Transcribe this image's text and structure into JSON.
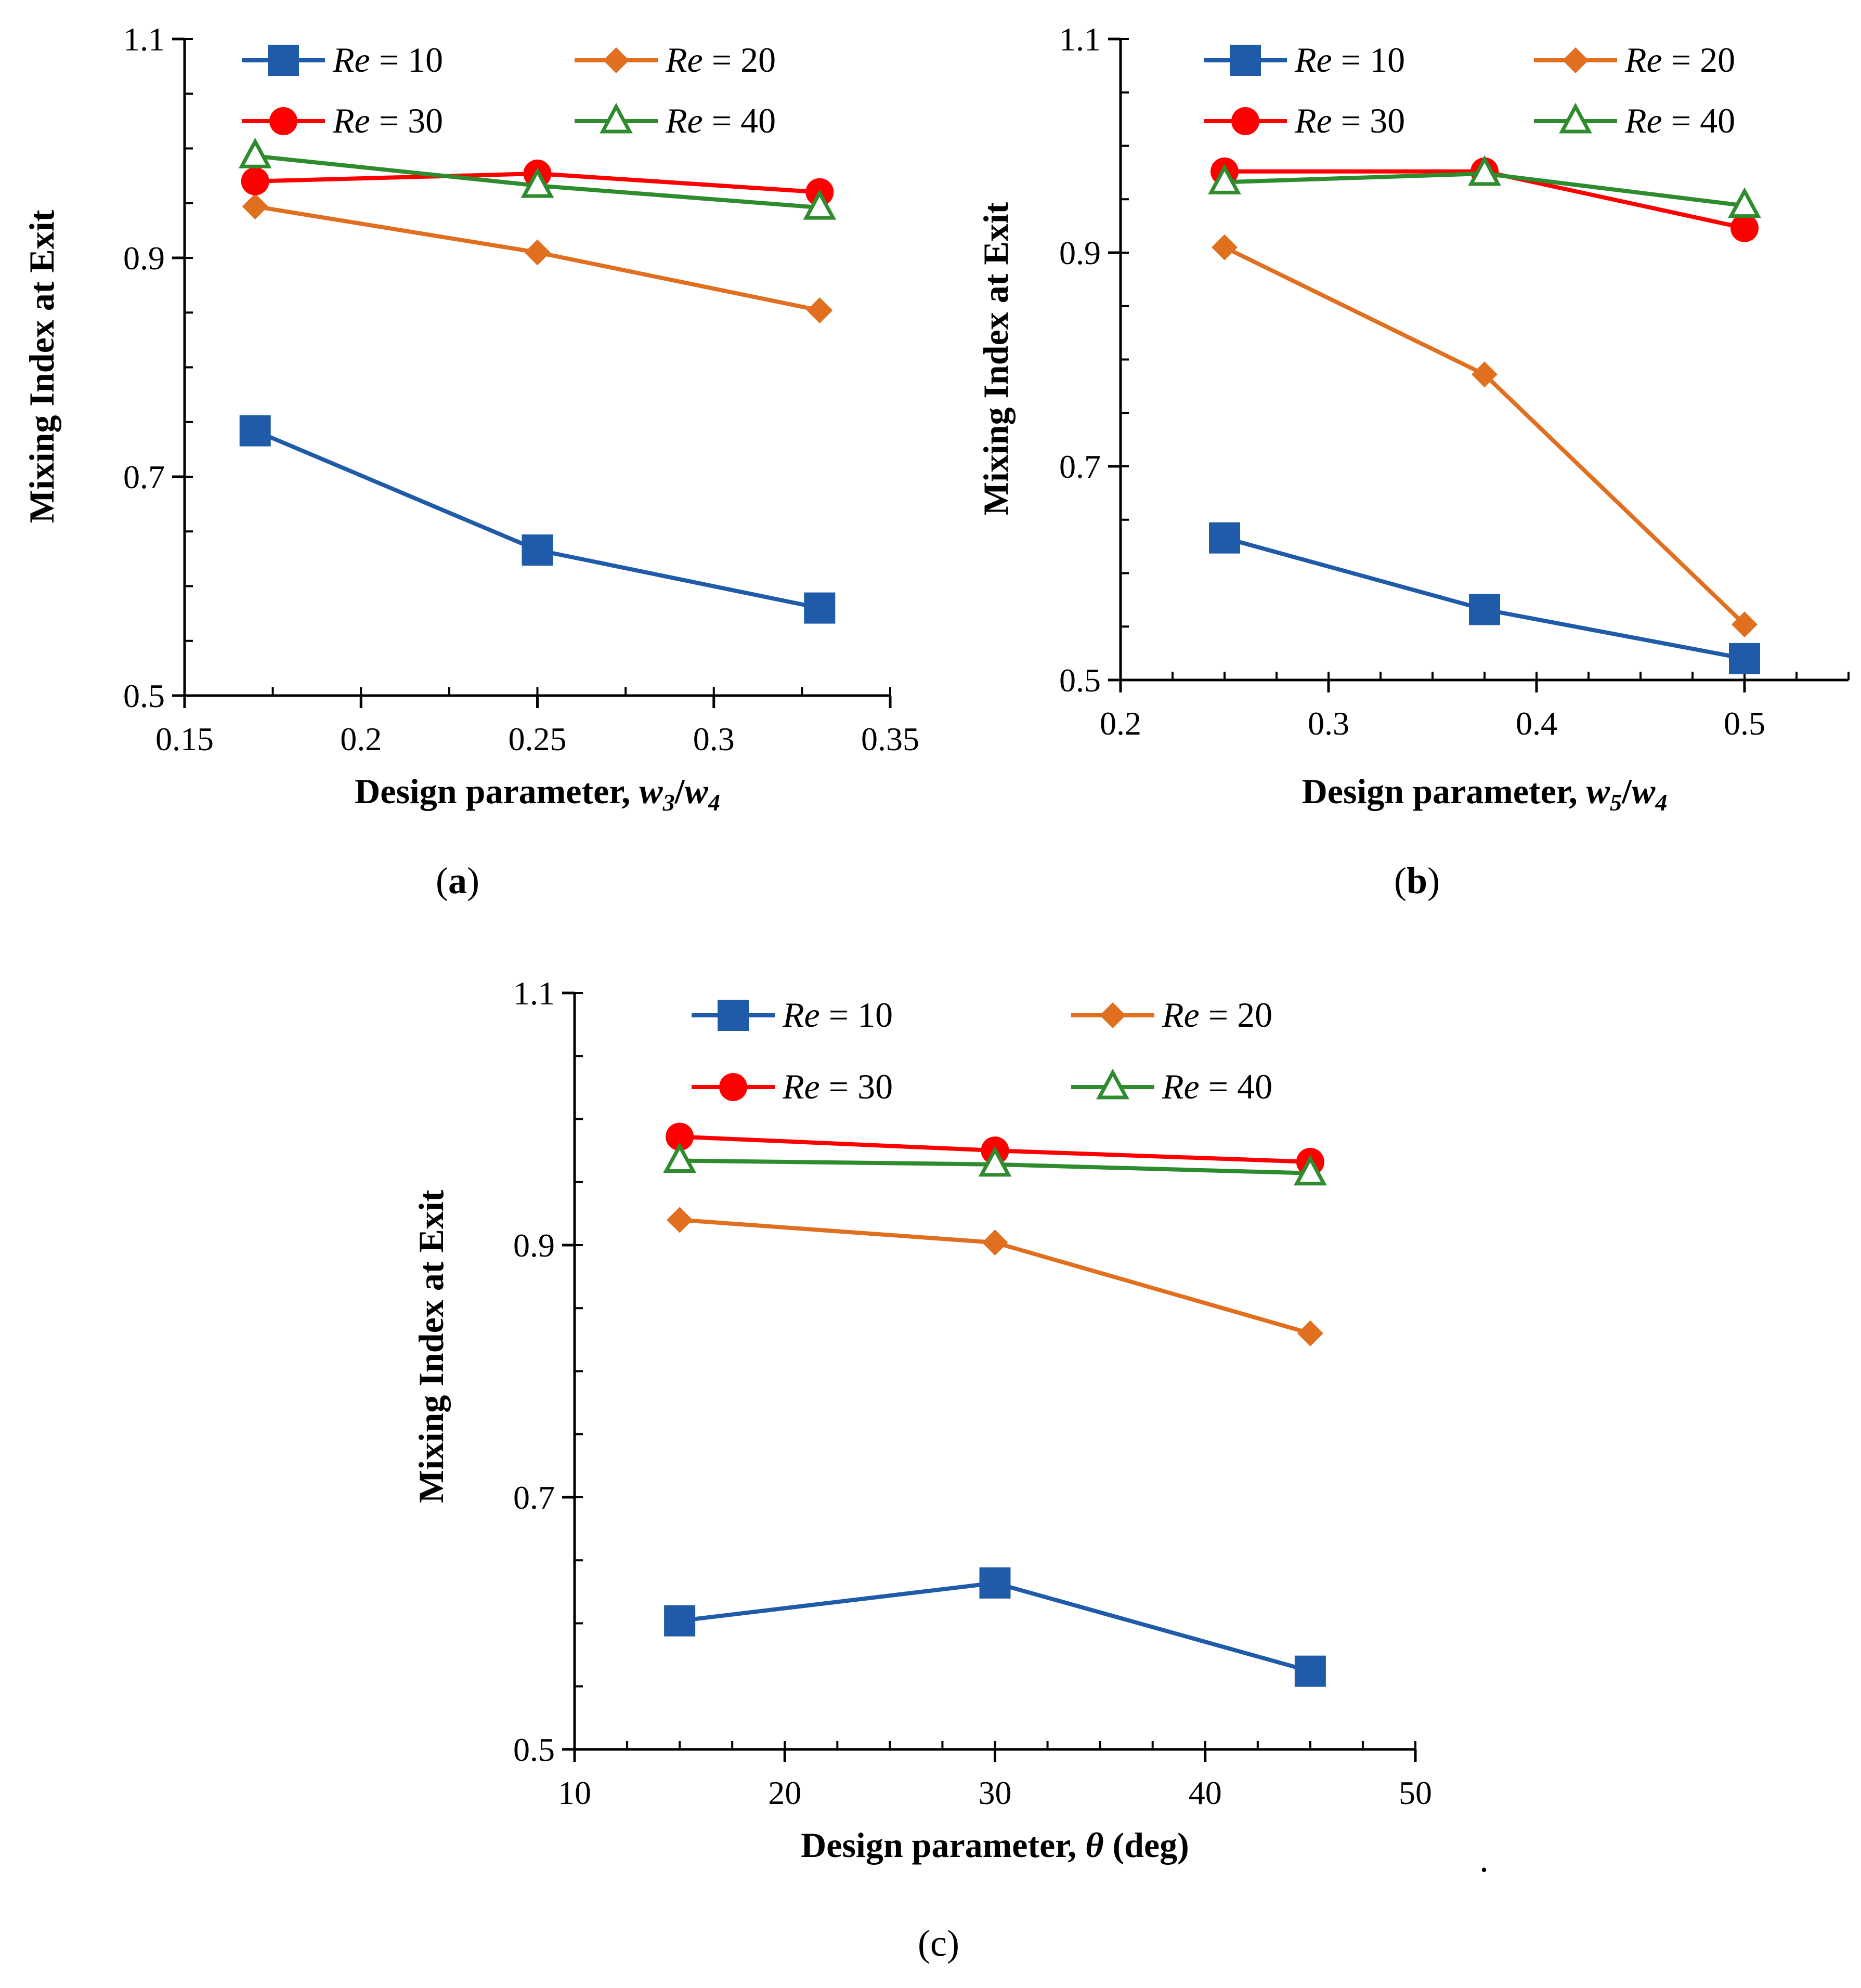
{
  "chart_data": [
    {
      "type": "line",
      "panel": "a",
      "caption": {
        "open": "(",
        "letter": "a",
        "close": ")"
      },
      "title": "",
      "xlabel": "Design parameter, w3/w4",
      "xlabel_parts": {
        "prefix": "Design parameter, ",
        "v1": "w",
        "s1": "3",
        "slash": "/",
        "v2": "w",
        "s2": "4"
      },
      "ylabel": "Mixing Index at Exit",
      "xlim": [
        0.15,
        0.35
      ],
      "ylim": [
        0.5,
        1.1
      ],
      "xticks": [
        0.15,
        0.2,
        0.25,
        0.3,
        0.35
      ],
      "xtick_labels": [
        "0.15",
        "0.2",
        "0.25",
        "0.3",
        "0.35"
      ],
      "yticks": [
        0.5,
        0.7,
        0.9,
        1.1
      ],
      "ytick_labels": [
        "0.5",
        "0.7",
        "0.9",
        "1.1"
      ],
      "x": [
        0.17,
        0.25,
        0.33
      ],
      "series": [
        {
          "name": "Re = 10",
          "var": "Re",
          "rest": " = 10",
          "color": "#1f5ba8",
          "marker": "square",
          "values": [
            0.742,
            0.633,
            0.58
          ]
        },
        {
          "name": "Re = 20",
          "var": "Re",
          "rest": " = 20",
          "color": "#e06f1f",
          "marker": "diamond",
          "values": [
            0.947,
            0.905,
            0.852
          ]
        },
        {
          "name": "Re = 30",
          "var": "Re",
          "rest": " = 30",
          "color": "#ff0000",
          "marker": "circle",
          "values": [
            0.97,
            0.977,
            0.96
          ]
        },
        {
          "name": "Re = 40",
          "var": "Re",
          "rest": " = 40",
          "color": "#2e8b2e",
          "marker": "triangle",
          "values": [
            0.993,
            0.966,
            0.946
          ]
        }
      ],
      "legend": "top, two columns"
    },
    {
      "type": "line",
      "panel": "b",
      "caption": {
        "open": "(",
        "letter": "b",
        "close": ")"
      },
      "title": "",
      "xlabel": "Design parameter, w5/w4",
      "xlabel_parts": {
        "prefix": "Design parameter, ",
        "v1": "w",
        "s1": "5",
        "slash": "/",
        "v2": "w",
        "s2": "4"
      },
      "ylabel": "Mixing Index at Exit",
      "xlim": [
        0.2,
        0.55
      ],
      "ylim": [
        0.5,
        1.1
      ],
      "xticks": [
        0.2,
        0.3,
        0.4,
        0.5
      ],
      "xtick_labels": [
        "0.2",
        "0.3",
        "0.4",
        "0.5"
      ],
      "yticks": [
        0.5,
        0.7,
        0.9,
        1.1
      ],
      "ytick_labels": [
        "0.5",
        "0.7",
        "0.9",
        "1.1"
      ],
      "x": [
        0.25,
        0.375,
        0.5
      ],
      "series": [
        {
          "name": "Re = 10",
          "var": "Re",
          "rest": " = 10",
          "color": "#1f5ba8",
          "marker": "square",
          "values": [
            0.633,
            0.566,
            0.52
          ]
        },
        {
          "name": "Re = 20",
          "var": "Re",
          "rest": " = 20",
          "color": "#e06f1f",
          "marker": "diamond",
          "values": [
            0.905,
            0.786,
            0.552
          ]
        },
        {
          "name": "Re = 30",
          "var": "Re",
          "rest": " = 30",
          "color": "#ff0000",
          "marker": "circle",
          "values": [
            0.976,
            0.976,
            0.923
          ]
        },
        {
          "name": "Re = 40",
          "var": "Re",
          "rest": " = 40",
          "color": "#2e8b2e",
          "marker": "triangle",
          "values": [
            0.966,
            0.974,
            0.944
          ]
        }
      ],
      "legend": "top, two columns"
    },
    {
      "type": "line",
      "panel": "c",
      "caption": {
        "open": "(",
        "letter": "c",
        "close": ")"
      },
      "title": "",
      "xlabel": "Design parameter, θ (deg)",
      "xlabel_parts": {
        "prefix": "Design parameter, ",
        "v1": "θ",
        "suffix": " (deg)"
      },
      "ylabel": "Mixing Index at Exit",
      "xlim": [
        10,
        50
      ],
      "ylim": [
        0.5,
        1.1
      ],
      "xticks": [
        10,
        20,
        30,
        40,
        50
      ],
      "xtick_labels": [
        "10",
        "20",
        "30",
        "40",
        "50"
      ],
      "yticks": [
        0.5,
        0.7,
        0.9,
        1.1
      ],
      "ytick_labels": [
        "0.5",
        "0.7",
        "0.9",
        "1.1"
      ],
      "x": [
        15,
        30,
        45
      ],
      "series": [
        {
          "name": "Re = 10",
          "var": "Re",
          "rest": " = 10",
          "color": "#1f5ba8",
          "marker": "square",
          "values": [
            0.602,
            0.632,
            0.562
          ]
        },
        {
          "name": "Re = 20",
          "var": "Re",
          "rest": " = 20",
          "color": "#e06f1f",
          "marker": "diamond",
          "values": [
            0.92,
            0.902,
            0.83
          ]
        },
        {
          "name": "Re = 30",
          "var": "Re",
          "rest": " = 30",
          "color": "#ff0000",
          "marker": "circle",
          "values": [
            0.986,
            0.975,
            0.966
          ]
        },
        {
          "name": "Re = 40",
          "var": "Re",
          "rest": " = 40",
          "color": "#2e8b2e",
          "marker": "triangle",
          "values": [
            0.967,
            0.964,
            0.957
          ]
        }
      ],
      "legend": "top, two columns"
    }
  ],
  "stray_mark": "."
}
